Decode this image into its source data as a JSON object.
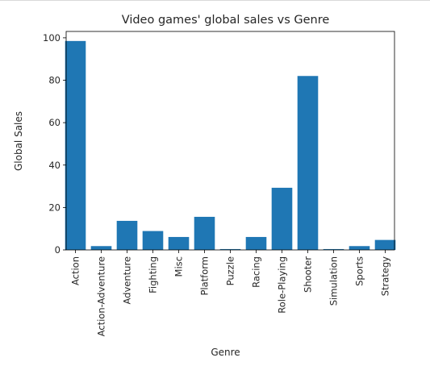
{
  "chart_data": {
    "type": "bar",
    "title": "Video games' global sales vs Genre",
    "xlabel": "Genre",
    "ylabel": "Global Sales",
    "ylim": [
      0,
      103
    ],
    "yticks": [
      0,
      20,
      40,
      60,
      80,
      100
    ],
    "categories": [
      "Action",
      "Action-Adventure",
      "Adventure",
      "Fighting",
      "Misc",
      "Platform",
      "Puzzle",
      "Racing",
      "Role-Playing",
      "Shooter",
      "Simulation",
      "Sports",
      "Strategy"
    ],
    "values": [
      98.5,
      1.8,
      13.7,
      8.9,
      6.1,
      15.6,
      0.4,
      6.1,
      29.3,
      82.0,
      0.4,
      1.8,
      4.7
    ],
    "bar_color": "#1f77b4",
    "grid": false,
    "legend": "none"
  }
}
